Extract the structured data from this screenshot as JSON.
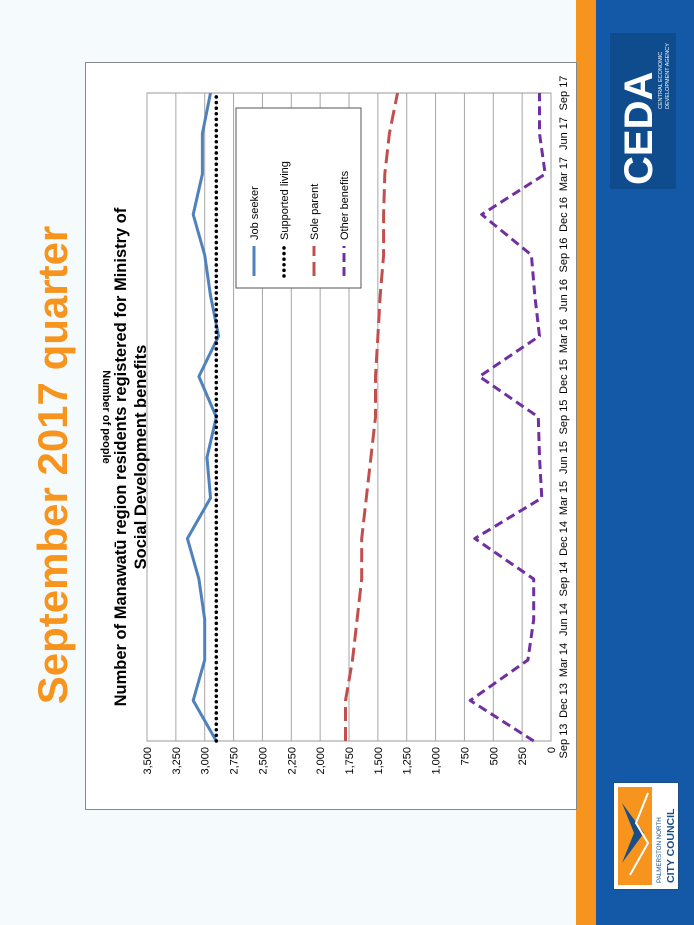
{
  "page_title": "September 2017 quarter",
  "logos": {
    "ceda": {
      "wordmark": "CEDA",
      "tagline_1": "CENTRAL ECONOMIC",
      "tagline_2": "DEVELOPMENT AGENCY"
    },
    "council": {
      "line_1": "PALMERSTON NORTH",
      "line_2": "CITY COUNCIL"
    }
  },
  "colors": {
    "accent_orange": "#f7941d",
    "brand_blue": "#1458a8",
    "job_seeker": "#4f81bd",
    "supported_living": "#000000",
    "sole_parent": "#c0504d",
    "other_benefits": "#7030a0"
  },
  "chart_data": {
    "type": "line",
    "title_line1": "Number of Manawatū region residents registered for Ministry of",
    "title_line2": "Social Development benefits",
    "xlabel": "",
    "ylabel": "Number of people",
    "ylim": [
      0,
      3500
    ],
    "yticks": [
      "0",
      "250",
      "500",
      "750",
      "1,000",
      "1,250",
      "1,500",
      "1,750",
      "2,000",
      "2,250",
      "2,500",
      "2,750",
      "3,000",
      "3,250",
      "3,500"
    ],
    "grid": true,
    "legend_position": "top-right",
    "categories": [
      "Sep 13",
      "Dec 13",
      "Mar 14",
      "Jun 14",
      "Sep 14",
      "Dec 14",
      "Mar 15",
      "Jun 15",
      "Sep 15",
      "Dec 15",
      "Mar 16",
      "Jun 16",
      "Sep 16",
      "Dec 16",
      "Mar 17",
      "Jun 17",
      "Sep 17"
    ],
    "series": [
      {
        "name": "Job seeker",
        "style": "solid",
        "color": "#4f81bd",
        "values": [
          2900,
          3100,
          3000,
          3000,
          3050,
          3150,
          2950,
          2980,
          2900,
          3050,
          2880,
          2950,
          3000,
          3100,
          3020,
          3020,
          2950
        ]
      },
      {
        "name": "Supported living",
        "style": "dotted",
        "color": "#000000",
        "values": [
          2900,
          2900,
          2900,
          2900,
          2900,
          2900,
          2900,
          2900,
          2900,
          2900,
          2900,
          2900,
          2900,
          2900,
          2900,
          2900,
          2900
        ]
      },
      {
        "name": "Sole parent",
        "style": "dashed",
        "color": "#c0504d",
        "values": [
          1780,
          1780,
          1720,
          1680,
          1640,
          1640,
          1600,
          1560,
          1520,
          1520,
          1500,
          1480,
          1450,
          1450,
          1440,
          1400,
          1330
        ]
      },
      {
        "name": "Other benefits",
        "style": "shortdash",
        "color": "#7030a0",
        "values": [
          150,
          700,
          200,
          150,
          150,
          660,
          80,
          100,
          110,
          620,
          100,
          140,
          170,
          600,
          50,
          100,
          100
        ]
      }
    ]
  }
}
